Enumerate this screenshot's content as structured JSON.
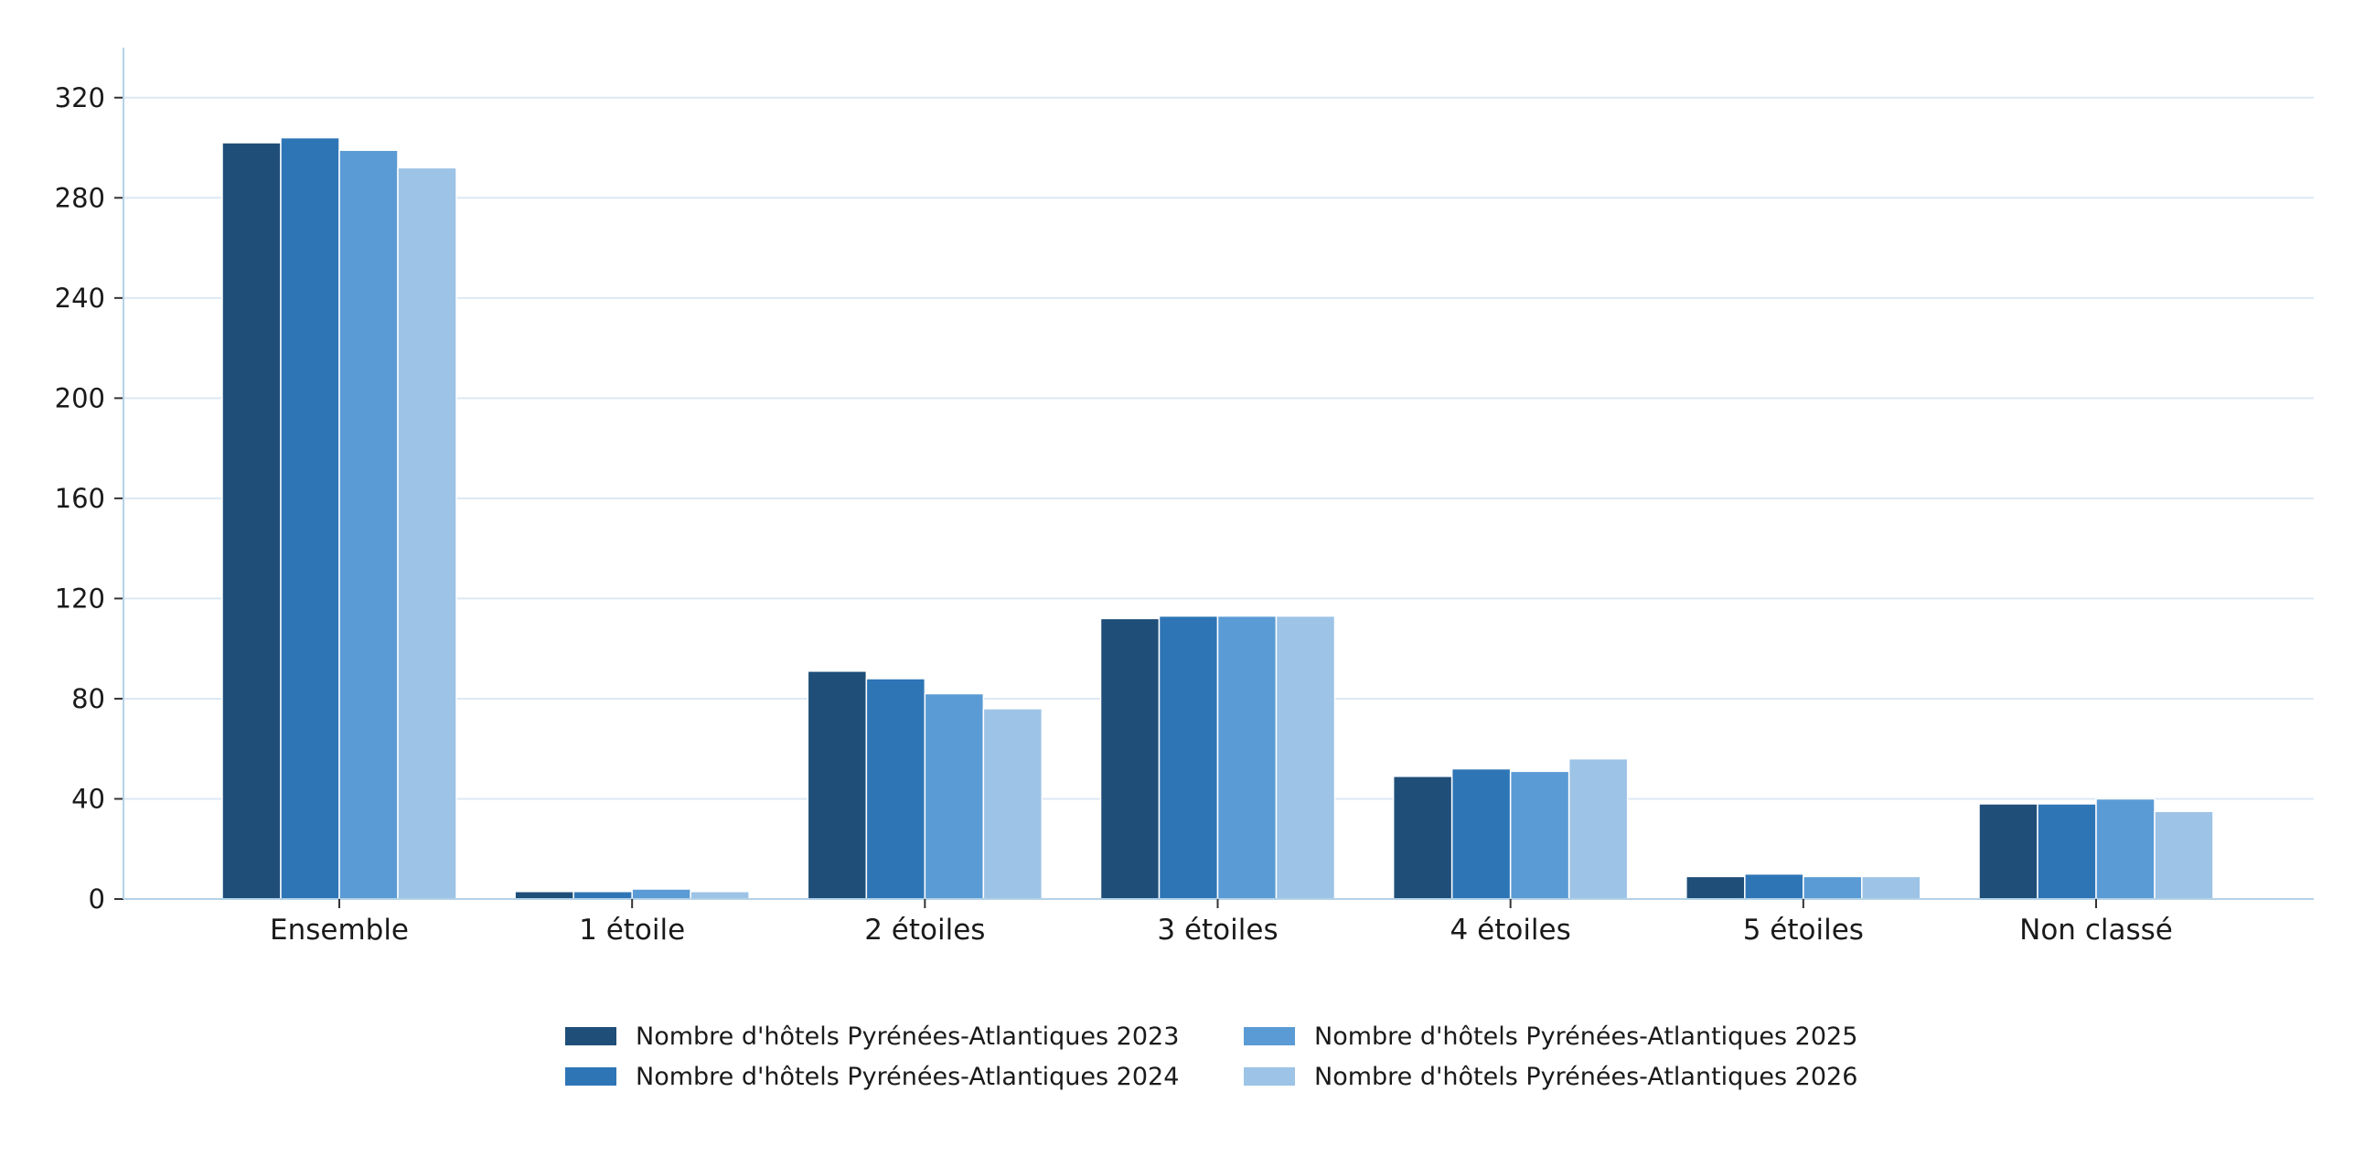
{
  "chart_data": {
    "type": "bar",
    "title": "",
    "xlabel": "",
    "ylabel": "",
    "categories": [
      "Ensemble",
      "1 étoile",
      "2 étoiles",
      "3 étoiles",
      "4 étoiles",
      "5 étoiles",
      "Non classé"
    ],
    "series": [
      {
        "name": "Nombre d'hôtels Pyrénées-Atlantiques 2023",
        "color": "#1f4e79",
        "values": [
          302,
          3,
          91,
          112,
          49,
          9,
          38
        ]
      },
      {
        "name": "Nombre d'hôtels Pyrénées-Atlantiques 2024",
        "color": "#2e75b6",
        "values": [
          304,
          3,
          88,
          113,
          52,
          10,
          38
        ]
      },
      {
        "name": "Nombre d'hôtels Pyrénées-Atlantiques 2025",
        "color": "#5b9bd5",
        "values": [
          299,
          4,
          82,
          113,
          51,
          9,
          40
        ]
      },
      {
        "name": "Nombre d'hôtels Pyrénées-Atlantiques 2026",
        "color": "#9dc3e6",
        "values": [
          292,
          3,
          76,
          113,
          56,
          9,
          35
        ]
      }
    ],
    "ylim": [
      0,
      340
    ],
    "yticks": [
      0,
      40,
      80,
      120,
      160,
      200,
      240,
      280,
      320
    ],
    "grid": true,
    "legend_position": "bottom"
  }
}
